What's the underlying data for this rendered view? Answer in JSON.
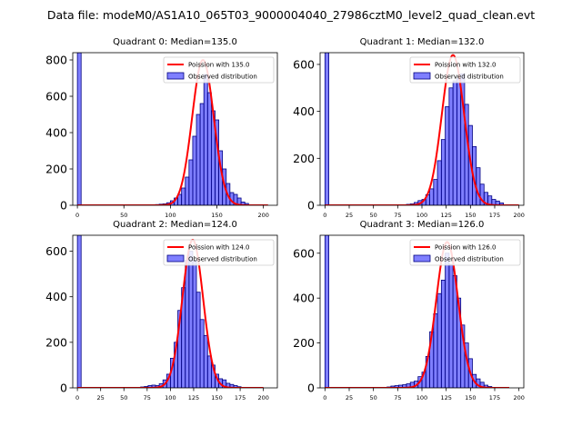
{
  "suptitle": "Data file: modeM0/AS1A10_065T03_9000004040_27986cztM0_level2_quad_clean.evt",
  "colors": {
    "bar": "#0000ff",
    "bar_edge": "#000080",
    "fit": "#ff0000"
  },
  "chart_data": [
    {
      "type": "bar",
      "title": "Quadrant 0: Median=135.0",
      "xlim": [
        -5,
        215
      ],
      "ylim": [
        0,
        840
      ],
      "xticks": [
        0,
        50,
        100,
        150,
        200
      ],
      "yticks": [
        0,
        200,
        400,
        600,
        800
      ],
      "legend": {
        "fit": "Poission with 135.0",
        "obs": "Observed distribution"
      },
      "bin_width": 4,
      "bar_left_edges": [
        0,
        76,
        80,
        84,
        88,
        92,
        96,
        100,
        104,
        108,
        112,
        116,
        120,
        124,
        128,
        132,
        136,
        140,
        144,
        148,
        152,
        156,
        160,
        164,
        168,
        172,
        176,
        180
      ],
      "bar_values": [
        840,
        2,
        3,
        4,
        6,
        8,
        14,
        25,
        40,
        60,
        95,
        155,
        250,
        380,
        500,
        560,
        720,
        620,
        520,
        470,
        300,
        200,
        120,
        70,
        60,
        40,
        18,
        10
      ],
      "poisson_mean": 135.0,
      "poisson_peak": 800,
      "curve_x_range": [
        0,
        205
      ]
    },
    {
      "type": "bar",
      "title": "Quadrant 1: Median=132.0",
      "xlim": [
        -5,
        205
      ],
      "ylim": [
        0,
        650
      ],
      "xticks": [
        0,
        25,
        50,
        75,
        100,
        125,
        150,
        175,
        200
      ],
      "yticks": [
        0,
        200,
        400,
        600
      ],
      "legend": {
        "fit": "Poission with 132.0",
        "obs": "Observed distribution"
      },
      "bin_width": 4,
      "bar_left_edges": [
        0,
        84,
        88,
        92,
        96,
        100,
        104,
        108,
        112,
        116,
        120,
        124,
        128,
        132,
        136,
        140,
        144,
        148,
        152,
        156,
        160,
        164,
        168,
        172,
        176,
        180
      ],
      "bar_values": [
        650,
        4,
        6,
        12,
        20,
        25,
        45,
        70,
        110,
        190,
        280,
        420,
        500,
        530,
        540,
        560,
        430,
        340,
        250,
        160,
        90,
        55,
        40,
        25,
        18,
        10
      ],
      "poisson_mean": 132.0,
      "poisson_peak": 640,
      "curve_x_range": [
        0,
        200
      ]
    },
    {
      "type": "bar",
      "title": "Quadrant 2: Median=124.0",
      "xlim": [
        -5,
        215
      ],
      "ylim": [
        0,
        670
      ],
      "xticks": [
        0,
        25,
        50,
        75,
        100,
        125,
        150,
        175,
        200
      ],
      "yticks": [
        0,
        200,
        400,
        600
      ],
      "legend": {
        "fit": "Poission with 124.0",
        "obs": "Observed distribution"
      },
      "bin_width": 4,
      "bar_left_edges": [
        0,
        64,
        68,
        72,
        76,
        80,
        84,
        88,
        92,
        96,
        100,
        104,
        108,
        112,
        116,
        120,
        124,
        128,
        132,
        136,
        140,
        144,
        148,
        152,
        156,
        160,
        164,
        168,
        172
      ],
      "bar_values": [
        670,
        2,
        4,
        6,
        10,
        12,
        10,
        18,
        35,
        60,
        130,
        200,
        340,
        440,
        560,
        600,
        560,
        420,
        300,
        230,
        140,
        100,
        60,
        40,
        35,
        20,
        15,
        10,
        5
      ],
      "poisson_mean": 124.0,
      "poisson_peak": 650,
      "curve_x_range": [
        0,
        200
      ]
    },
    {
      "type": "bar",
      "title": "Quadrant 3: Median=126.0",
      "xlim": [
        -5,
        205
      ],
      "ylim": [
        0,
        680
      ],
      "xticks": [
        0,
        25,
        50,
        75,
        100,
        125,
        150,
        175,
        200
      ],
      "yticks": [
        0,
        200,
        400,
        600
      ],
      "legend": {
        "fit": "Poission with 126.0",
        "obs": "Observed distribution"
      },
      "bin_width": 4,
      "bar_left_edges": [
        0,
        64,
        68,
        72,
        76,
        80,
        84,
        88,
        92,
        96,
        100,
        104,
        108,
        112,
        116,
        120,
        124,
        128,
        132,
        136,
        140,
        144,
        148,
        152,
        156,
        160,
        164,
        168
      ],
      "bar_values": [
        680,
        4,
        8,
        10,
        12,
        14,
        18,
        25,
        30,
        50,
        70,
        140,
        250,
        330,
        420,
        480,
        600,
        550,
        500,
        400,
        280,
        200,
        130,
        60,
        40,
        25,
        12,
        6
      ],
      "poisson_mean": 126.0,
      "poisson_peak": 650,
      "curve_x_range": [
        0,
        190
      ]
    }
  ]
}
